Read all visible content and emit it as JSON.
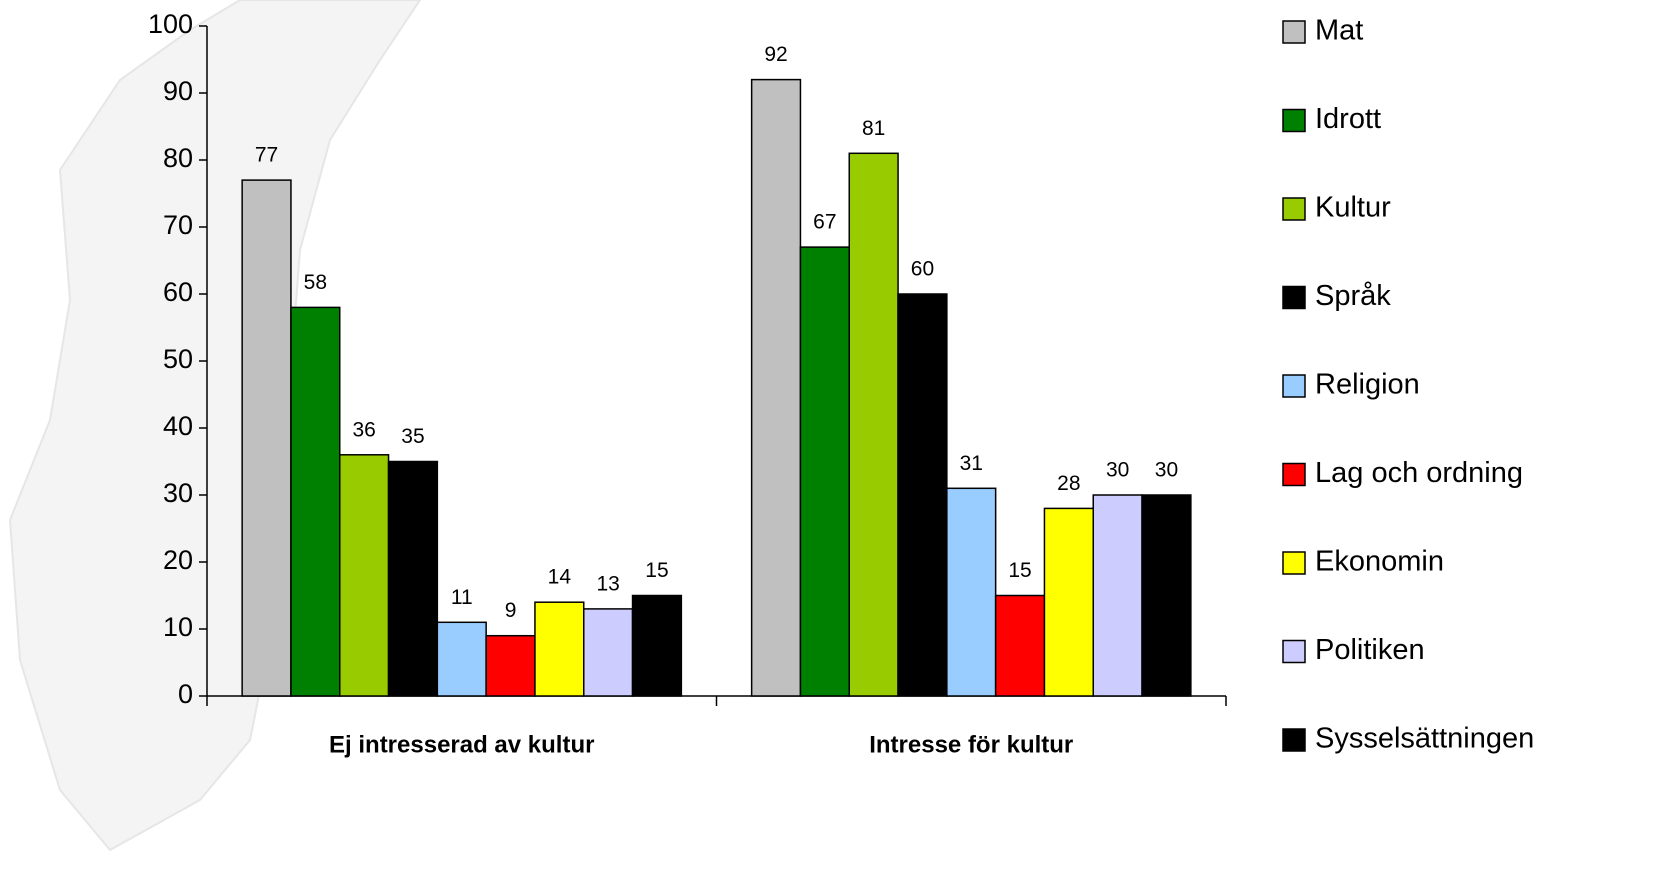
{
  "chart_data": {
    "type": "bar",
    "categories": [
      "Ej intresserad av kultur",
      "Intresse för kultur"
    ],
    "series": [
      {
        "name": "Mat",
        "color": "#c0c0c0",
        "values": [
          77,
          92
        ]
      },
      {
        "name": "Idrott",
        "color": "#008000",
        "values": [
          58,
          67
        ]
      },
      {
        "name": "Kultur",
        "color": "#99cc00",
        "values": [
          36,
          81
        ]
      },
      {
        "name": "Språk",
        "color": "#000000",
        "values": [
          35,
          60
        ]
      },
      {
        "name": "Religion",
        "color": "#99ccff",
        "values": [
          11,
          31
        ]
      },
      {
        "name": "Lag och ordning",
        "color": "#ff0000",
        "values": [
          9,
          15
        ]
      },
      {
        "name": "Ekonomin",
        "color": "#ffff00",
        "values": [
          14,
          28
        ]
      },
      {
        "name": "Politiken",
        "color": "#ccccff",
        "values": [
          13,
          30
        ]
      },
      {
        "name": "Sysselsättningen",
        "color": "#000000",
        "values": [
          15,
          30
        ]
      }
    ],
    "ylim": [
      0,
      100
    ],
    "yticks": [
      0,
      10,
      20,
      30,
      40,
      50,
      60,
      70,
      80,
      90,
      100
    ],
    "legend": "right",
    "grid": false
  }
}
